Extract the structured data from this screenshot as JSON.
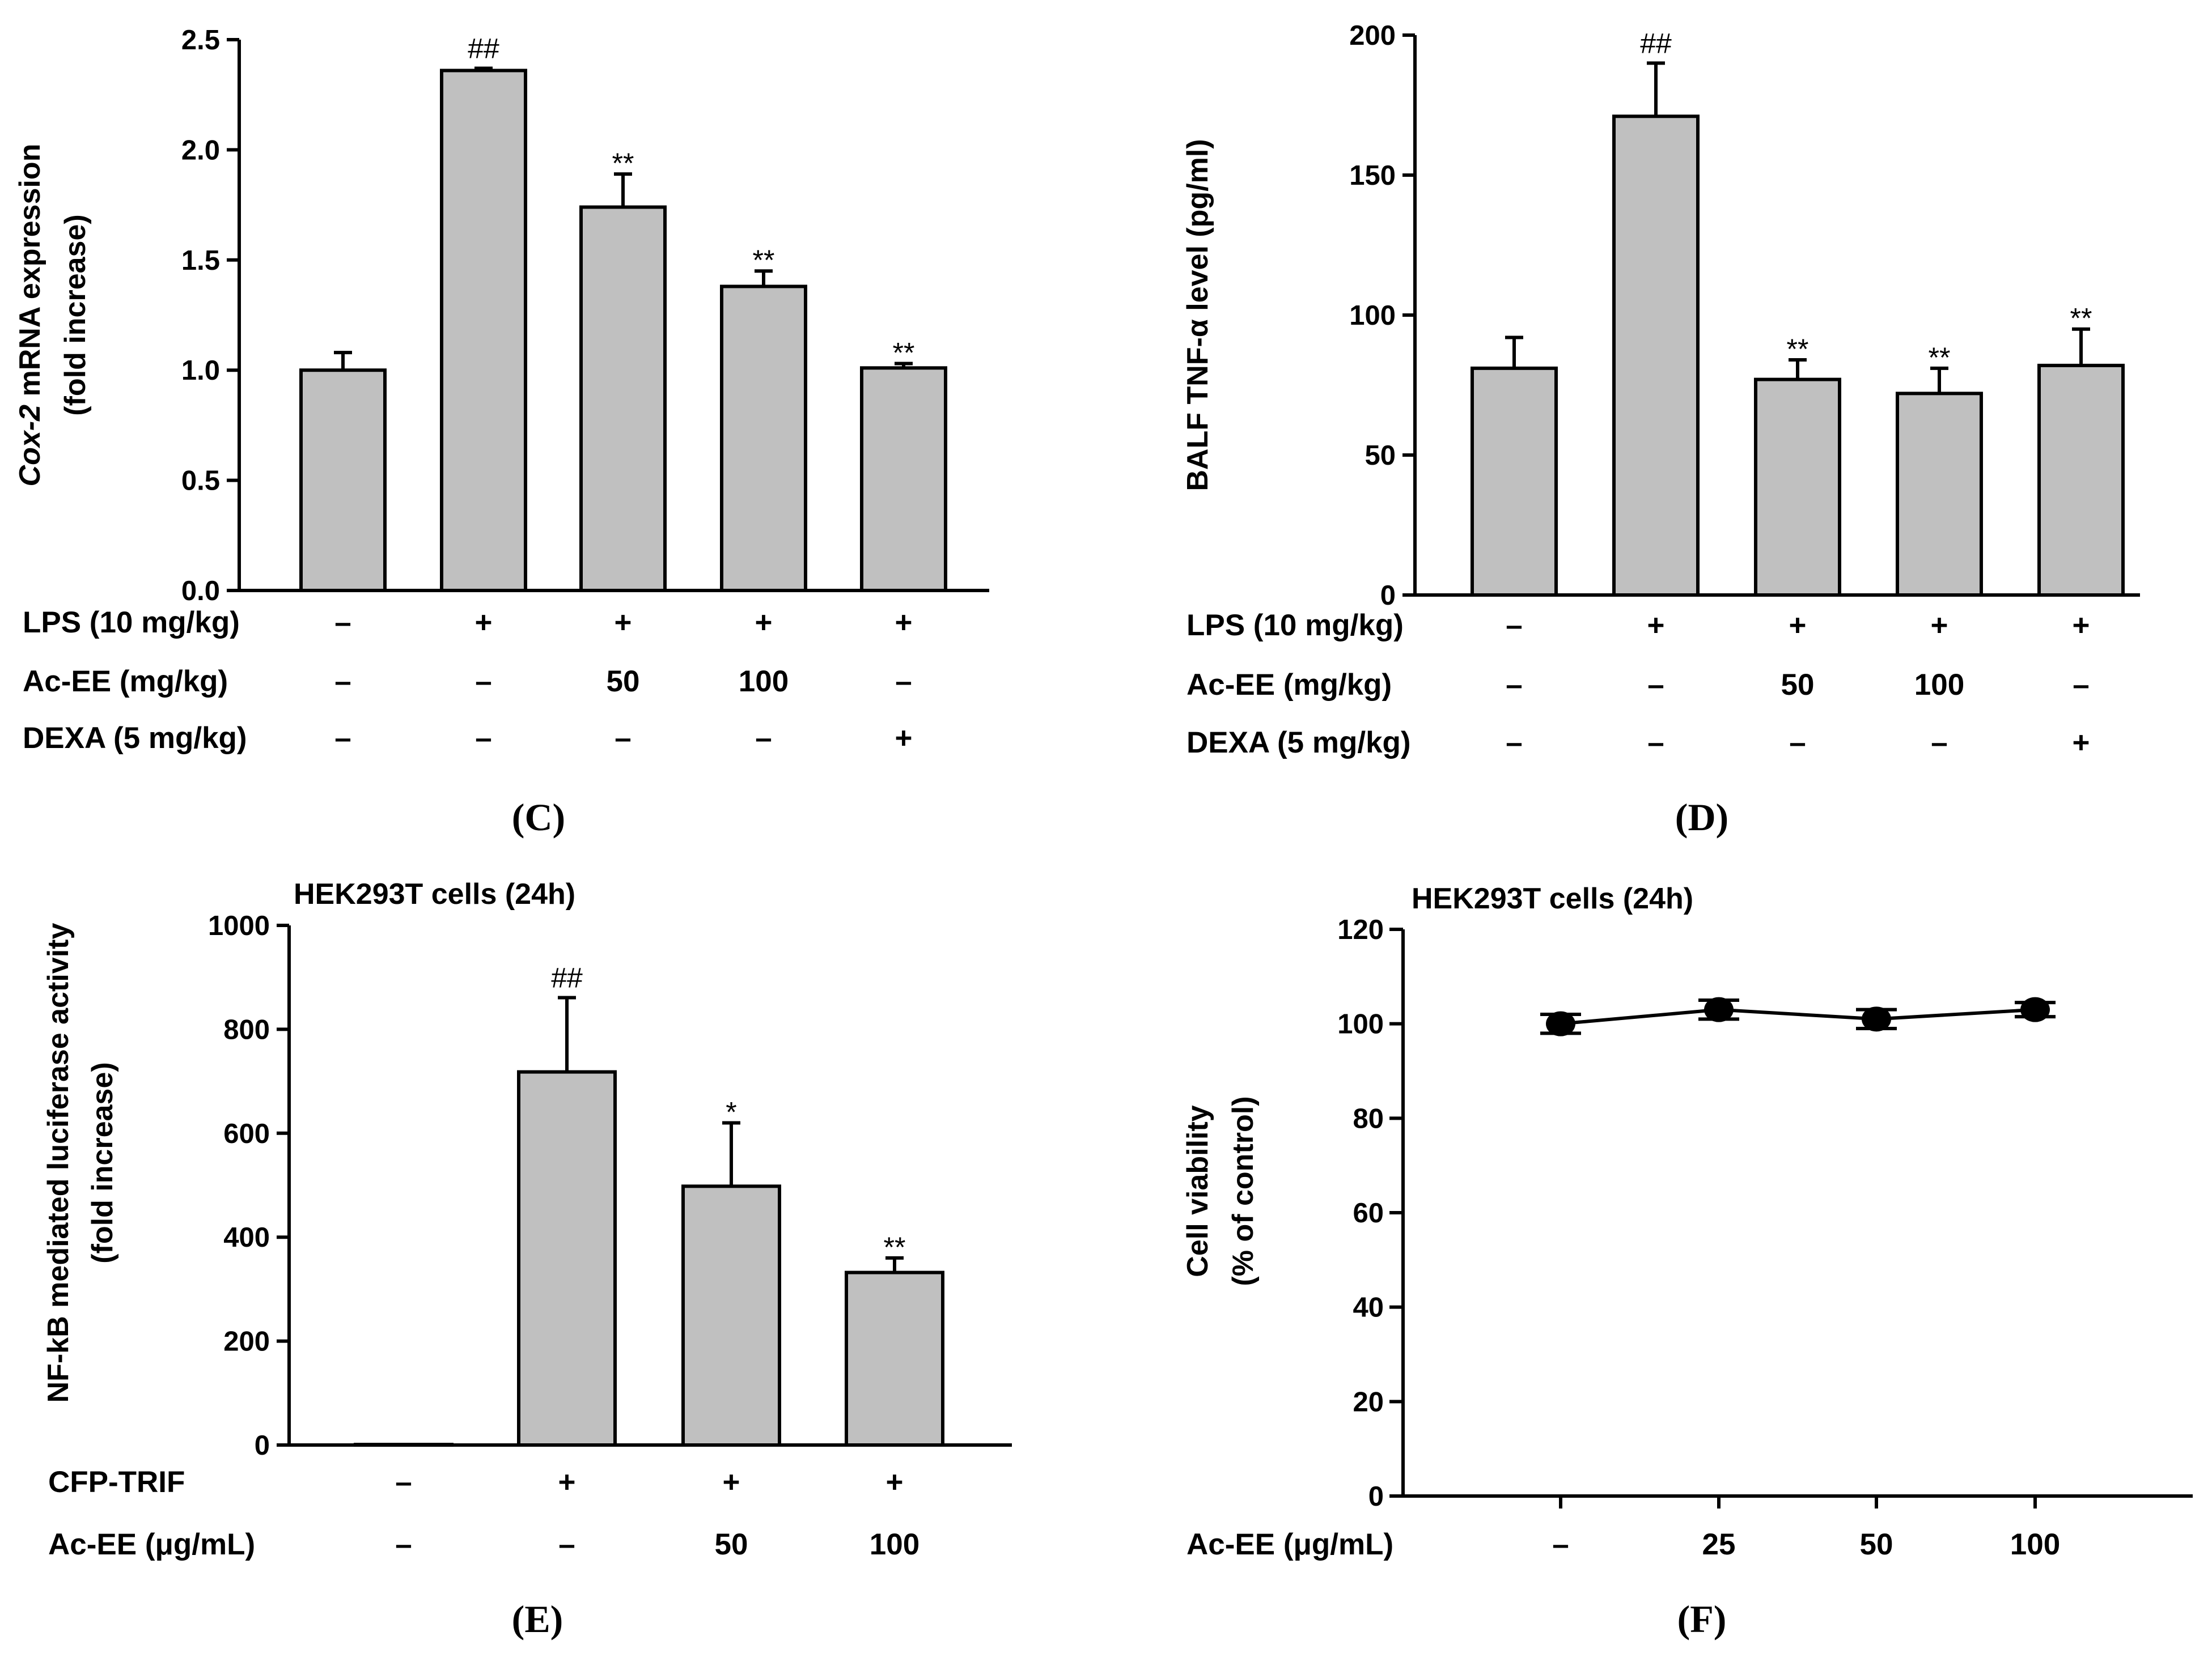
{
  "chart_data": [
    {
      "type": "bar",
      "panel": "(C)",
      "ylabel_italic": "Cox-2",
      "ylabel_rest": " mRNA expression",
      "ylabel2": "(fold increase)",
      "ylim": [
        0,
        2.5
      ],
      "yticks": [
        "0.0",
        "0.5",
        "1.0",
        "1.5",
        "2.0",
        "2.5"
      ],
      "values": [
        1.0,
        2.36,
        1.74,
        1.38,
        1.01
      ],
      "errors": [
        0.08,
        0.01,
        0.15,
        0.07,
        0.02
      ],
      "significance": [
        "",
        "##",
        "**",
        "**",
        "**"
      ],
      "conditions": [
        {
          "label": "LPS (10 mg/kg)",
          "values": [
            "–",
            "+",
            "+",
            "+",
            "+"
          ]
        },
        {
          "label": "Ac-EE (mg/kg)",
          "values": [
            "–",
            "–",
            "50",
            "100",
            "–"
          ]
        },
        {
          "label": "DEXA (5 mg/kg)",
          "values": [
            "–",
            "–",
            "–",
            "–",
            "+"
          ]
        }
      ]
    },
    {
      "type": "bar",
      "panel": "(D)",
      "ylabel_italic": "",
      "ylabel_rest": "BALF TNF-α level (pg/ml)",
      "ylabel2": "",
      "ylim": [
        0,
        200
      ],
      "yticks": [
        "0",
        "50",
        "100",
        "150",
        "200"
      ],
      "values": [
        81,
        171,
        77,
        72,
        82
      ],
      "errors": [
        11,
        19,
        7,
        9,
        13
      ],
      "significance": [
        "",
        "##",
        "**",
        "**",
        "**"
      ],
      "conditions": [
        {
          "label": "LPS (10 mg/kg)",
          "values": [
            "–",
            "+",
            "+",
            "+",
            "+"
          ]
        },
        {
          "label": "Ac-EE (mg/kg)",
          "values": [
            "–",
            "–",
            "50",
            "100",
            "–"
          ]
        },
        {
          "label": "DEXA (5 mg/kg)",
          "values": [
            "–",
            "–",
            "–",
            "–",
            "+"
          ]
        }
      ]
    },
    {
      "type": "bar",
      "panel": "(E)",
      "subtitle": "HEK293T cells (24h)",
      "ylabel_italic": "",
      "ylabel_rest": "NF-kB mediated luciferase activity",
      "ylabel2": "(fold increase)",
      "ylim": [
        0,
        1000
      ],
      "yticks": [
        "0",
        "200",
        "400",
        "600",
        "800",
        "1000"
      ],
      "values": [
        1,
        718,
        498,
        332
      ],
      "errors": [
        0,
        143,
        122,
        28
      ],
      "significance": [
        "",
        "##",
        "*",
        "**"
      ],
      "conditions": [
        {
          "label": "CFP-TRIF",
          "values": [
            "–",
            "+",
            "+",
            "+"
          ]
        },
        {
          "label": "Ac-EE (μg/mL)",
          "values": [
            "–",
            "–",
            "50",
            "100"
          ]
        }
      ]
    },
    {
      "type": "line",
      "panel": "(F)",
      "subtitle": "HEK293T cells (24h)",
      "ylabel_italic": "",
      "ylabel_rest": "Cell viability",
      "ylabel2": "(% of control)",
      "ylim": [
        0,
        120
      ],
      "yticks": [
        "0",
        "20",
        "40",
        "60",
        "80",
        "100",
        "120"
      ],
      "values": [
        100,
        103,
        101,
        103
      ],
      "errors": [
        2,
        2,
        2,
        1.5
      ],
      "conditions": [
        {
          "label": "Ac-EE (μg/mL)",
          "values": [
            "–",
            "25",
            "50",
            "100"
          ]
        }
      ]
    }
  ]
}
